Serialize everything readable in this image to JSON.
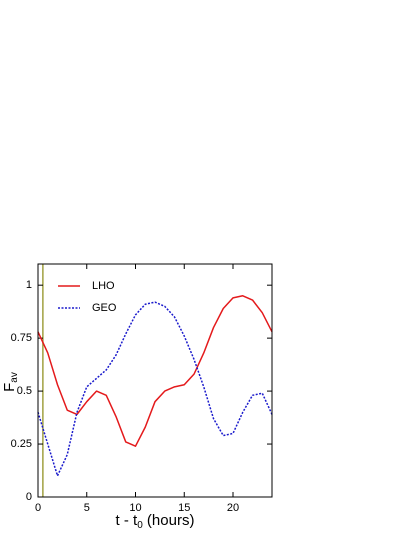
{
  "chart_data": {
    "type": "line",
    "xlabel": {
      "main": "t - t",
      "sub": "0",
      "rest": " (hours)"
    },
    "ylabel": {
      "main": "F",
      "sub": "av"
    },
    "x": [
      0,
      1,
      2,
      3,
      4,
      5,
      6,
      7,
      8,
      9,
      10,
      11,
      12,
      13,
      14,
      15,
      16,
      17,
      18,
      19,
      20,
      21,
      22,
      23,
      24
    ],
    "series": [
      {
        "name": "LHO",
        "color": "#e41a1c",
        "dash": "solid",
        "values": [
          0.78,
          0.68,
          0.53,
          0.41,
          0.39,
          0.45,
          0.5,
          0.48,
          0.38,
          0.26,
          0.24,
          0.33,
          0.45,
          0.5,
          0.52,
          0.53,
          0.58,
          0.68,
          0.8,
          0.89,
          0.94,
          0.95,
          0.93,
          0.87,
          0.78
        ]
      },
      {
        "name": "GEO",
        "color": "#1a1acc",
        "dash": "dotted",
        "values": [
          0.4,
          0.25,
          0.1,
          0.2,
          0.4,
          0.52,
          0.56,
          0.6,
          0.67,
          0.77,
          0.86,
          0.91,
          0.92,
          0.9,
          0.85,
          0.76,
          0.65,
          0.52,
          0.37,
          0.29,
          0.3,
          0.4,
          0.48,
          0.49,
          0.39
        ]
      }
    ],
    "vline": {
      "x": 0.5,
      "color": "#a0a040"
    },
    "xlim": [
      0,
      24
    ],
    "xticks": [
      0,
      5,
      10,
      15,
      20
    ],
    "ylim": [
      0,
      1.1
    ],
    "yticks": [
      0,
      0.25,
      0.5,
      0.75,
      1
    ],
    "legend": "upper-left"
  }
}
